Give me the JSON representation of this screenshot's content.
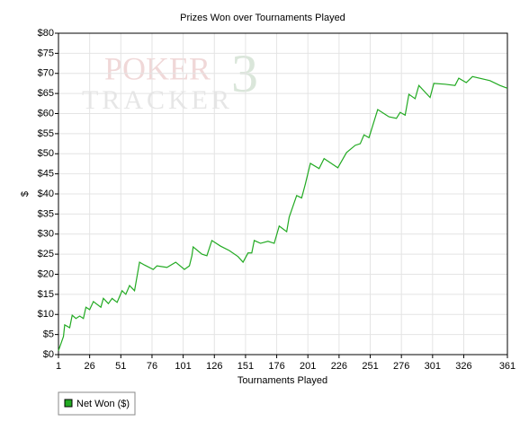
{
  "chart_data": {
    "type": "line",
    "title": "Prizes Won over Tournaments Played",
    "xlabel": "Tournaments Played",
    "ylabel": "$",
    "watermark": [
      "POKER",
      "TRACKER",
      "3"
    ],
    "xlim": [
      1,
      361
    ],
    "xticks": [
      1,
      26,
      51,
      76,
      101,
      126,
      151,
      176,
      201,
      226,
      251,
      276,
      301,
      326,
      361
    ],
    "ylim": [
      0,
      80
    ],
    "yticks": [
      {
        "value": 0,
        "label": "$0"
      },
      {
        "value": 5,
        "label": "$5"
      },
      {
        "value": 10,
        "label": "$10"
      },
      {
        "value": 15,
        "label": "$15"
      },
      {
        "value": 20,
        "label": "$20"
      },
      {
        "value": 25,
        "label": "$25"
      },
      {
        "value": 30,
        "label": "$30"
      },
      {
        "value": 35,
        "label": "$35"
      },
      {
        "value": 40,
        "label": "$40"
      },
      {
        "value": 45,
        "label": "$45"
      },
      {
        "value": 50,
        "label": "$50"
      },
      {
        "value": 55,
        "label": "$55"
      },
      {
        "value": 60,
        "label": "$60"
      },
      {
        "value": 65,
        "label": "$65"
      },
      {
        "value": 70,
        "label": "$70"
      },
      {
        "value": 75,
        "label": "$75"
      },
      {
        "value": 80,
        "label": "$80"
      }
    ],
    "grid": true,
    "legend": "bottom-left",
    "x": [
      1,
      5,
      6,
      10,
      12,
      15,
      18,
      21,
      23,
      26,
      29,
      35,
      37,
      41,
      44,
      48,
      52,
      55,
      58,
      62,
      66,
      70,
      77,
      80,
      88,
      95,
      102,
      106,
      108,
      109,
      116,
      120,
      124,
      131,
      138,
      145,
      149,
      153,
      156,
      158,
      163,
      169,
      174,
      178,
      184,
      186,
      192,
      196,
      199,
      203,
      210,
      214,
      225,
      232,
      239,
      243,
      246,
      250,
      257,
      266,
      272,
      275,
      279,
      282,
      287,
      290,
      299,
      302,
      311,
      319,
      322,
      328,
      333,
      347,
      355,
      361
    ],
    "series": [
      {
        "name": "Net Won ($)",
        "color": "#22aa22",
        "values": [
          1,
          4.5,
          7.4,
          6.7,
          9.8,
          9,
          9.6,
          9,
          11.8,
          11.2,
          13.2,
          11.8,
          14,
          12.7,
          14,
          13,
          15.9,
          15,
          17.2,
          15.9,
          23,
          22.3,
          21.2,
          22.1,
          21.7,
          23,
          21.2,
          22.1,
          24.6,
          26.8,
          25,
          24.6,
          28.4,
          27,
          25.9,
          24.4,
          23,
          25.3,
          25.3,
          28.4,
          27.7,
          28.2,
          27.7,
          32,
          30.6,
          34.2,
          39.6,
          39,
          42.5,
          47.6,
          46.3,
          48.8,
          46.5,
          50.3,
          52.1,
          52.5,
          54.7,
          54,
          61,
          59.2,
          58.8,
          60.3,
          59.6,
          64.8,
          63.7,
          67,
          64,
          67.5,
          67.3,
          67,
          68.8,
          67.7,
          69.2,
          68.2,
          67,
          66.3
        ]
      }
    ]
  }
}
